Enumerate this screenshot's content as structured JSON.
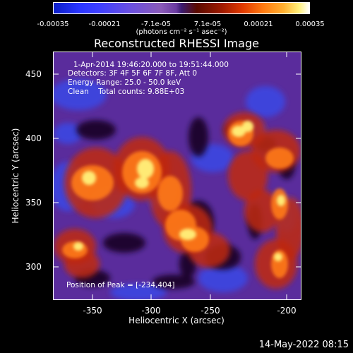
{
  "colorbar": {
    "tick_labels": [
      "-0.00035",
      "-0.00021",
      "-7.1e-05",
      "7.1e-05",
      "0.00021",
      "0.00035"
    ],
    "unit": "(photons cm⁻² s⁻¹ asec⁻²)"
  },
  "title": "Reconstructed RHESSI Image",
  "annotations": {
    "time": "1-Apr-2014 19:46:20.000 to 19:51:44.000",
    "detectors": "Detectors: 3F 4F 5F 6F 7F 8F, Att 0",
    "energy": "Energy Range: 25.0 - 50.0 keV",
    "method": "Clean    Total counts: 9.88E+03",
    "peak": "Position of Peak = [-234,404]"
  },
  "chart_data": {
    "type": "heatmap",
    "xlabel": "Heliocentric X (arcsec)",
    "ylabel": "Heliocentric Y (arcsec)",
    "x_ticks": [
      "-350",
      "-300",
      "-250",
      "-200"
    ],
    "y_ticks": [
      "450",
      "400",
      "350",
      "300"
    ],
    "xlim": [
      -380,
      -188
    ],
    "ylim": [
      275,
      467
    ],
    "colorbar_range": [
      -0.00035,
      0.00035
    ],
    "peak_position": [
      -234,
      404
    ]
  },
  "footer": {
    "date": "14-May-2022 08:15"
  },
  "colors": {
    "background": "#000000",
    "text": "#ffffff"
  }
}
